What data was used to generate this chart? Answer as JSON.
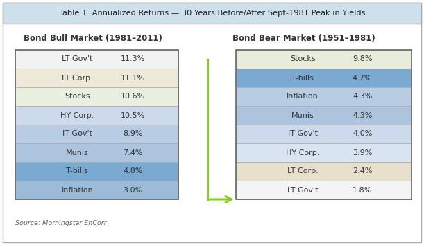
{
  "title": "Table 1: Annualized Returns — 30 Years Before/After Sept-1981 Peak in Yields",
  "source": "Source: Morningstar EnCorr",
  "bull_title": "Bond Bull Market (1981–2011)",
  "bear_title": "Bond Bear Market (1951–1981)",
  "bull_rows": [
    {
      "label": "LT Gov't",
      "value": "11.3%",
      "color": "#f2f2f2"
    },
    {
      "label": "LT Corp.",
      "value": "11.1%",
      "color": "#ede8d8"
    },
    {
      "label": "Stocks",
      "value": "10.6%",
      "color": "#eaf0e0"
    },
    {
      "label": "HY Corp.",
      "value": "10.5%",
      "color": "#ccdaec"
    },
    {
      "label": "IT Gov't",
      "value": "8.9%",
      "color": "#b8cce4"
    },
    {
      "label": "Munis",
      "value": "7.4%",
      "color": "#adc4df"
    },
    {
      "label": "T-bills",
      "value": "4.8%",
      "color": "#7aaad2"
    },
    {
      "label": "Inflation",
      "value": "3.0%",
      "color": "#9cbbd8"
    }
  ],
  "bear_rows": [
    {
      "label": "Stocks",
      "value": "9.8%",
      "color": "#e8ecda"
    },
    {
      "label": "T-bills",
      "value": "4.7%",
      "color": "#7aaad2"
    },
    {
      "label": "Inflation",
      "value": "4.3%",
      "color": "#b8cce4"
    },
    {
      "label": "Munis",
      "value": "4.3%",
      "color": "#adc4df"
    },
    {
      "label": "IT Gov't",
      "value": "4.0%",
      "color": "#ccdaec"
    },
    {
      "label": "HY Corp.",
      "value": "3.9%",
      "color": "#d8e4f0"
    },
    {
      "label": "LT Corp.",
      "value": "2.4%",
      "color": "#e8e0cc"
    },
    {
      "label": "LT Gov't",
      "value": "1.8%",
      "color": "#f4f4f4"
    }
  ],
  "bg_color": "#ffffff",
  "outer_border": "#aaaaaa",
  "header_bg": "#cde0ec",
  "title_color": "#222222",
  "cell_border": "#aaaaaa",
  "table_border": "#666666",
  "arrow_color": "#88cc22",
  "source_color": "#666666",
  "text_color": "#333333"
}
